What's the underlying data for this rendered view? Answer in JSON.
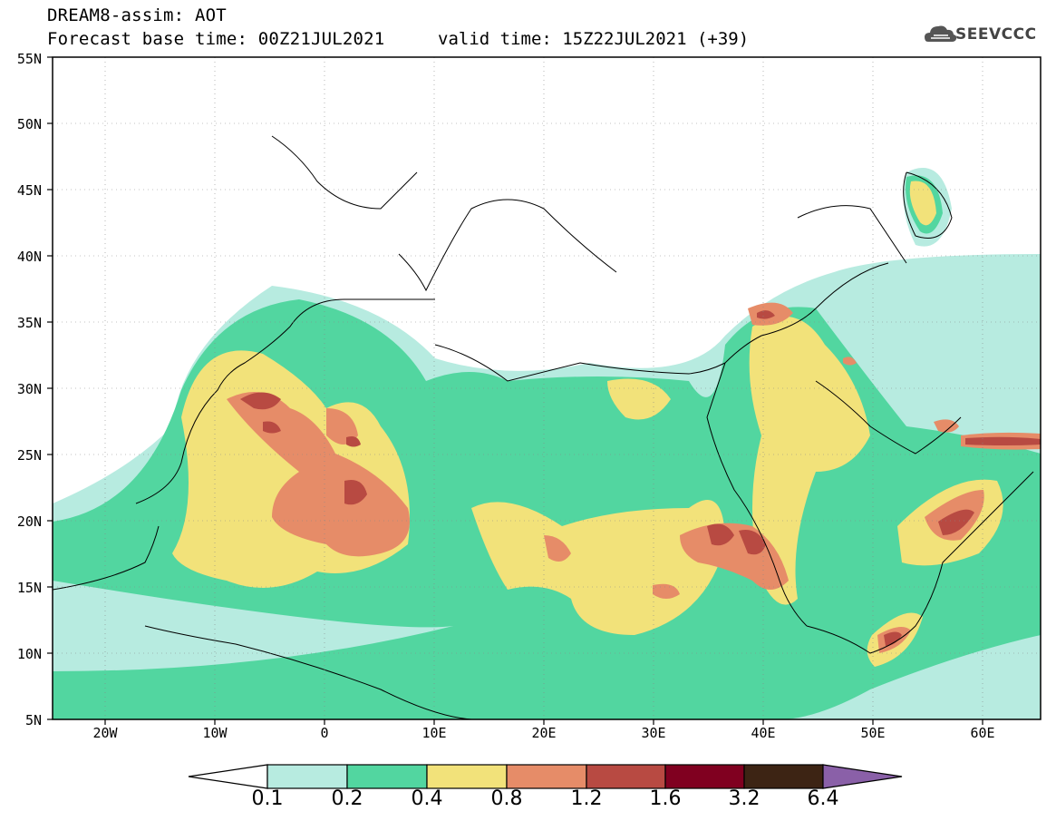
{
  "header": {
    "model_line": "DREAM8-assim: AOT",
    "base_time_line": "Forecast base time: 00Z21JUL2021",
    "valid_time_line": "valid time: 15Z22JUL2021 (+39)",
    "logo_text": "SEEVCCC"
  },
  "map": {
    "lon_range": [
      -25,
      65
    ],
    "lat_range": [
      5,
      55
    ],
    "lat_ticks": [
      "5N",
      "10N",
      "15N",
      "20N",
      "25N",
      "30N",
      "35N",
      "40N",
      "45N",
      "50N",
      "55N"
    ],
    "lon_ticks": [
      "20W",
      "10W",
      "0",
      "10E",
      "20E",
      "30E",
      "40E",
      "50E",
      "60E"
    ],
    "grid": "dotted"
  },
  "colorbar": {
    "levels": [
      "0.1",
      "0.2",
      "0.4",
      "0.8",
      "1.2",
      "1.6",
      "3.2",
      "6.4"
    ],
    "colors": [
      "#ffffff",
      "#b7ebe0",
      "#52d6a0",
      "#f2e27a",
      "#e68c68",
      "#b84a42",
      "#800020",
      "#3d2414",
      "#8a60a8"
    ]
  }
}
